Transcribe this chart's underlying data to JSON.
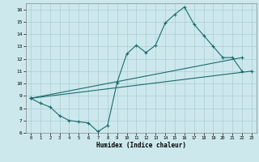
{
  "xlabel": "Humidex (Indice chaleur)",
  "bg_color": "#cce8ec",
  "grid_color": "#aacdd4",
  "line_color": "#1a6b6b",
  "xlim": [
    -0.5,
    23.5
  ],
  "ylim": [
    6,
    16.5
  ],
  "xticks": [
    0,
    1,
    2,
    3,
    4,
    5,
    6,
    7,
    8,
    9,
    10,
    11,
    12,
    13,
    14,
    15,
    16,
    17,
    18,
    19,
    20,
    21,
    22,
    23
  ],
  "yticks": [
    6,
    7,
    8,
    9,
    10,
    11,
    12,
    13,
    14,
    15,
    16
  ],
  "curve1_x": [
    0,
    1,
    2,
    3,
    4,
    5,
    6,
    7,
    8,
    9,
    10,
    11,
    12,
    13,
    14,
    15,
    16,
    17,
    18,
    19,
    20,
    21,
    22
  ],
  "curve1_y": [
    8.8,
    8.4,
    8.1,
    7.4,
    7.0,
    6.9,
    6.8,
    6.1,
    6.6,
    10.1,
    12.4,
    13.1,
    12.5,
    13.1,
    14.9,
    15.6,
    16.2,
    14.8,
    13.9,
    13.0,
    12.1,
    12.1,
    11.0
  ],
  "curve2_x": [
    0,
    22
  ],
  "curve2_y": [
    8.8,
    12.1
  ],
  "curve3_x": [
    0,
    23
  ],
  "curve3_y": [
    8.8,
    11.0
  ]
}
